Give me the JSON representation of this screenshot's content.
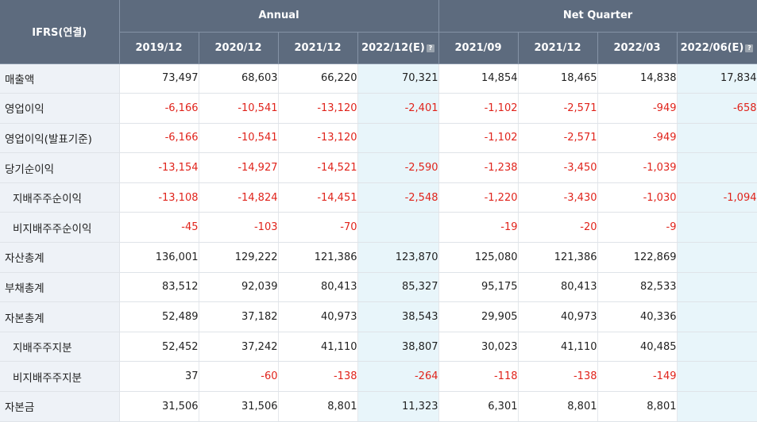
{
  "header": {
    "corner": "IFRS(연결)",
    "group_annual": "Annual",
    "group_quarter": "Net Quarter",
    "periods": [
      "2019/12",
      "2020/12",
      "2021/12",
      "2022/12(E)",
      "2021/09",
      "2021/12",
      "2022/03",
      "2022/06(E)"
    ]
  },
  "rows": [
    {
      "label": "매출액",
      "sub": false,
      "values": [
        "73,497",
        "68,603",
        "66,220",
        "70,321",
        "14,854",
        "18,465",
        "14,838",
        "17,834"
      ]
    },
    {
      "label": "영업이익",
      "sub": false,
      "values": [
        "-6,166",
        "-10,541",
        "-13,120",
        "-2,401",
        "-1,102",
        "-2,571",
        "-949",
        "-658"
      ]
    },
    {
      "label": "영업이익(발표기준)",
      "sub": false,
      "values": [
        "-6,166",
        "-10,541",
        "-13,120",
        "",
        "-1,102",
        "-2,571",
        "-949",
        ""
      ]
    },
    {
      "label": "당기순이익",
      "sub": false,
      "values": [
        "-13,154",
        "-14,927",
        "-14,521",
        "-2,590",
        "-1,238",
        "-3,450",
        "-1,039",
        ""
      ]
    },
    {
      "label": "지배주주순이익",
      "sub": true,
      "values": [
        "-13,108",
        "-14,824",
        "-14,451",
        "-2,548",
        "-1,220",
        "-3,430",
        "-1,030",
        "-1,094"
      ]
    },
    {
      "label": "비지배주주순이익",
      "sub": true,
      "values": [
        "-45",
        "-103",
        "-70",
        "",
        "-19",
        "-20",
        "-9",
        ""
      ]
    },
    {
      "label": "자산총계",
      "sub": false,
      "values": [
        "136,001",
        "129,222",
        "121,386",
        "123,870",
        "125,080",
        "121,386",
        "122,869",
        ""
      ]
    },
    {
      "label": "부채총계",
      "sub": false,
      "values": [
        "83,512",
        "92,039",
        "80,413",
        "85,327",
        "95,175",
        "80,413",
        "82,533",
        ""
      ]
    },
    {
      "label": "자본총계",
      "sub": false,
      "values": [
        "52,489",
        "37,182",
        "40,973",
        "38,543",
        "29,905",
        "40,973",
        "40,336",
        ""
      ]
    },
    {
      "label": "지배주주지분",
      "sub": true,
      "values": [
        "52,452",
        "37,242",
        "41,110",
        "38,807",
        "30,023",
        "41,110",
        "40,485",
        ""
      ]
    },
    {
      "label": "비지배주주지분",
      "sub": true,
      "values": [
        "37",
        "-60",
        "-138",
        "-264",
        "-118",
        "-138",
        "-149",
        ""
      ]
    },
    {
      "label": "자본금",
      "sub": false,
      "values": [
        "31,506",
        "31,506",
        "8,801",
        "11,323",
        "6,301",
        "8,801",
        "8,801",
        ""
      ]
    }
  ],
  "colors": {
    "header_bg": "#5d6b7e",
    "negative": "#e0231b",
    "estimate_bg": "#e8f5fa",
    "label_bg": "#eef2f7"
  },
  "icons": {
    "estimate_info": "question-icon"
  }
}
